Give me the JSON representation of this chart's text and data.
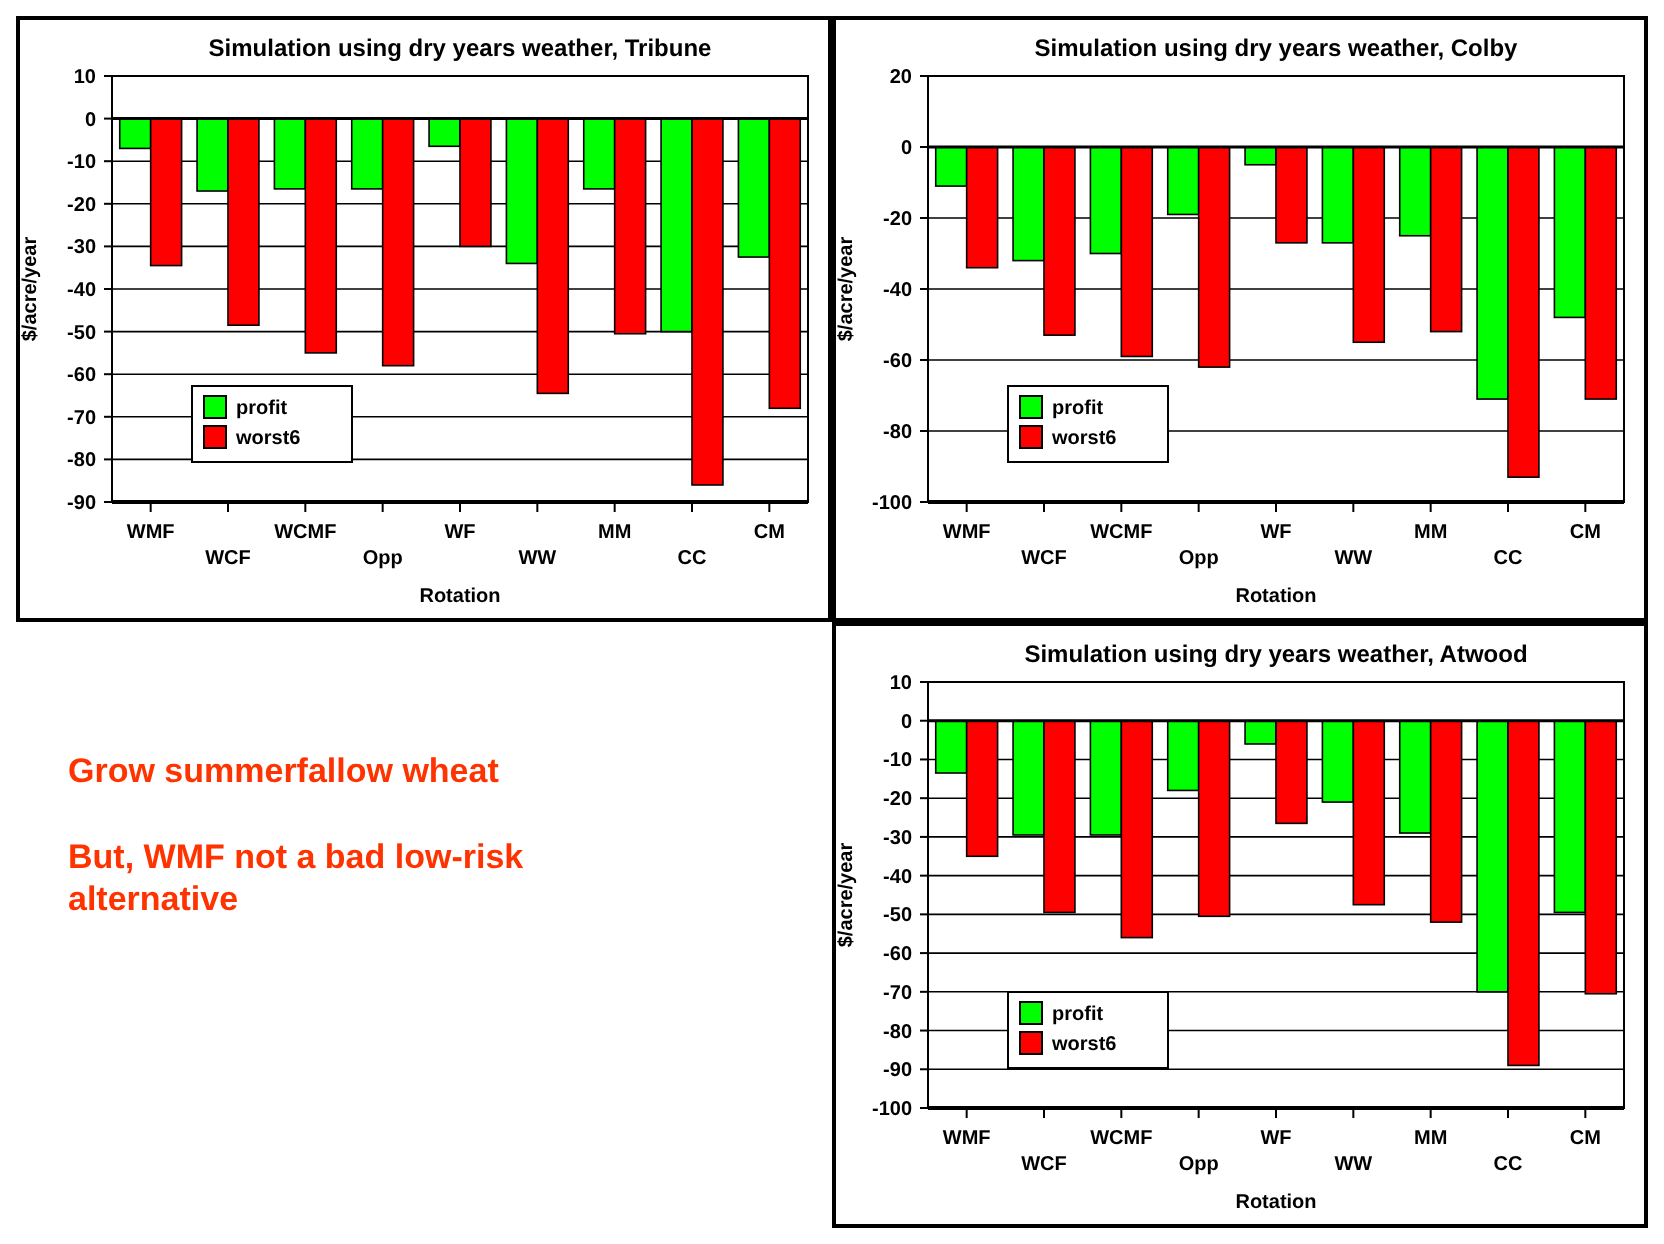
{
  "chart_data": [
    {
      "type": "bar",
      "title": "Simulation using dry years weather, Tribune",
      "xlabel": "Rotation",
      "ylabel": "$/acre/year",
      "categories": [
        "WMF",
        "WCF",
        "WCMF",
        "Opp",
        "WF",
        "WW",
        "MM",
        "CC",
        "CM"
      ],
      "series": [
        {
          "name": "profit",
          "color": "#00ff00",
          "values": [
            -7,
            -17,
            -16.5,
            -16.5,
            -6.5,
            -34,
            -16.5,
            -50,
            -32.5
          ]
        },
        {
          "name": "worst6",
          "color": "#ff0000",
          "values": [
            -34.5,
            -48.5,
            -55,
            -58,
            -30,
            -64.5,
            -50.5,
            -86,
            -68
          ]
        }
      ],
      "ylim": [
        -90,
        10
      ],
      "yticks": [
        -90,
        -80,
        -70,
        -60,
        -50,
        -40,
        -30,
        -20,
        -10,
        0,
        10
      ],
      "grid": "y",
      "legend": "bottom left"
    },
    {
      "type": "bar",
      "title": "Simulation using dry years weather, Colby",
      "xlabel": "Rotation",
      "ylabel": "$/acre/year",
      "categories": [
        "WMF",
        "WCF",
        "WCMF",
        "Opp",
        "WF",
        "WW",
        "MM",
        "CC",
        "CM"
      ],
      "series": [
        {
          "name": "profit",
          "color": "#00ff00",
          "values": [
            -11,
            -32,
            -30,
            -19,
            -5,
            -27,
            -25,
            -71,
            -48
          ]
        },
        {
          "name": "worst6",
          "color": "#ff0000",
          "values": [
            -34,
            -53,
            -59,
            -62,
            -27,
            -55,
            -52,
            -93,
            -71
          ]
        }
      ],
      "ylim": [
        -100,
        20
      ],
      "yticks": [
        -100,
        -80,
        -60,
        -40,
        -20,
        0,
        20
      ],
      "grid": "y",
      "legend": "bottom left"
    },
    {
      "type": "other",
      "annotations": [
        "Grow summerfallow wheat",
        "But, WMF not a bad low-risk alternative"
      ]
    },
    {
      "type": "bar",
      "title": "Simulation using dry years weather, Atwood",
      "xlabel": "Rotation",
      "ylabel": "$/acre/year",
      "categories": [
        "WMF",
        "WCF",
        "WCMF",
        "Opp",
        "WF",
        "WW",
        "MM",
        "CC",
        "CM"
      ],
      "series": [
        {
          "name": "profit",
          "color": "#00ff00",
          "values": [
            -13.5,
            -29.5,
            -29.5,
            -18,
            -6,
            -21,
            -29,
            -70,
            -49.5
          ]
        },
        {
          "name": "worst6",
          "color": "#ff0000",
          "values": [
            -35,
            -49.5,
            -56,
            -50.5,
            -26.5,
            -47.5,
            -52,
            -89,
            -70.5
          ]
        }
      ],
      "ylim": [
        -100,
        10
      ],
      "yticks": [
        -100,
        -90,
        -80,
        -70,
        -60,
        -50,
        -40,
        -30,
        -20,
        -10,
        0,
        10
      ],
      "grid": "y",
      "legend": "bottom left"
    }
  ]
}
